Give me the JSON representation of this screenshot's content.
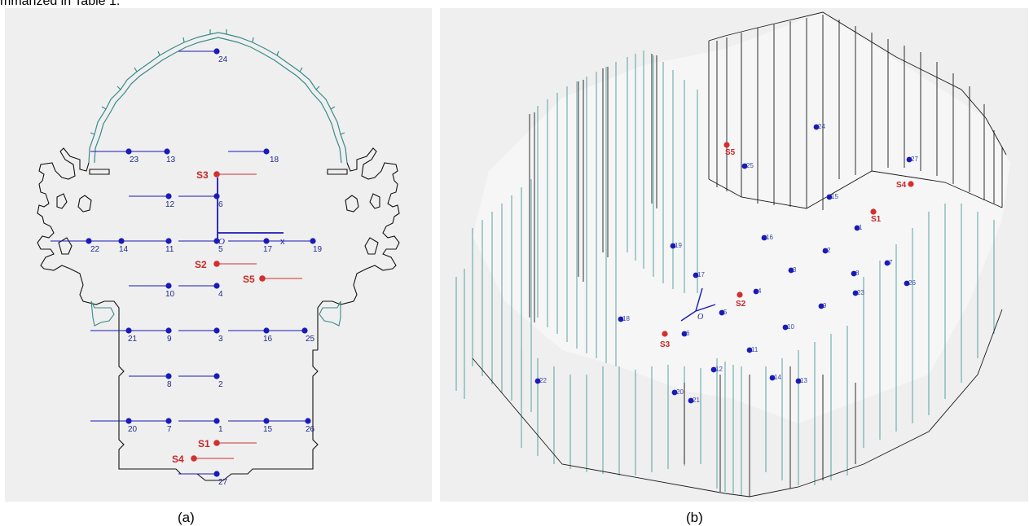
{
  "intro_text": "mmarized in Table 1.",
  "captions": {
    "a": "(a)",
    "b": "(b)"
  },
  "origin_label": "O",
  "axis_x_label": "x",
  "receivers_a": [
    "1",
    "2",
    "3",
    "4",
    "5",
    "6",
    "7",
    "8",
    "9",
    "10",
    "11",
    "12",
    "13",
    "14",
    "15",
    "16",
    "17",
    "18",
    "19",
    "20",
    "21",
    "22",
    "23",
    "24",
    "25",
    "26",
    "27"
  ],
  "sources_a": [
    "S1",
    "S2",
    "S3",
    "S4",
    "S5"
  ],
  "receivers_b": [
    "1",
    "2",
    "3",
    "4",
    "5",
    "6",
    "7",
    "8",
    "9",
    "10",
    "11",
    "12",
    "13",
    "14",
    "15",
    "16",
    "17",
    "18",
    "19",
    "20",
    "21",
    "22",
    "23",
    "24",
    "25",
    "26",
    "27"
  ],
  "sources_b": [
    "S1",
    "S2",
    "S3",
    "S4",
    "S5"
  ],
  "colors": {
    "receiver": "#1a1ab8",
    "source": "#d32f2f",
    "wall_plan": "#3a8a8a",
    "wall_3d": "#5aa6a6"
  }
}
